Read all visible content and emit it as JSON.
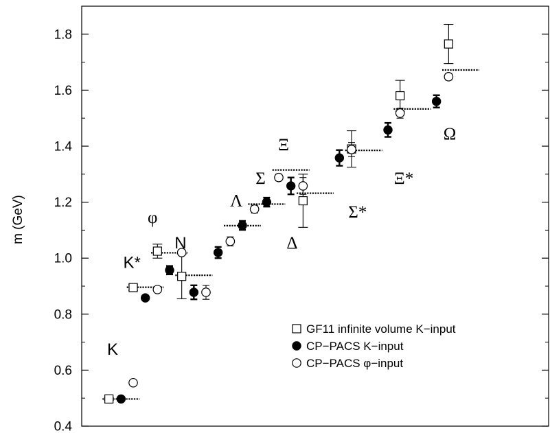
{
  "chart_data": {
    "type": "scatter",
    "ylabel": "m (GeV)",
    "ylim": [
      0.4,
      1.9
    ],
    "yticks": [
      "0.4",
      "0.6",
      "0.8",
      "1.0",
      "1.2",
      "1.4",
      "1.6",
      "1.8"
    ],
    "ytick_values": [
      0.4,
      0.6,
      0.8,
      1.0,
      1.2,
      1.4,
      1.6,
      1.8
    ],
    "xlim": [
      0,
      18
    ],
    "particles": [
      {
        "label": "K",
        "experiment": 0.497,
        "label_y": 0.655,
        "label_offset": 0.35,
        "font": "sans"
      },
      {
        "label": "K*",
        "experiment": 0.896,
        "label_y": 0.965,
        "label_offset": 0.55,
        "font": "sans"
      },
      {
        "label": "φ",
        "experiment": 1.019,
        "label_y": 1.125,
        "label_offset": 0.7,
        "font": "serif"
      },
      {
        "label": "N",
        "experiment": 0.939,
        "label_y": 1.035,
        "label_offset": 0.55,
        "font": "sans"
      },
      {
        "label": "Λ",
        "experiment": 1.116,
        "label_y": 1.185,
        "label_offset": 0.25,
        "font": "serif"
      },
      {
        "label": "Σ",
        "experiment": 1.193,
        "label_y": 1.265,
        "label_offset": 0.25,
        "font": "serif"
      },
      {
        "label": "Ξ",
        "experiment": 1.315,
        "label_y": 1.385,
        "label_offset": 0.3,
        "font": "serif"
      },
      {
        "label": "Δ",
        "experiment": 1.232,
        "label_y": 1.035,
        "label_offset": 0.95,
        "font": "serif"
      },
      {
        "label": "Σ*",
        "experiment": 1.385,
        "label_y": 1.145,
        "label_offset": 0.25,
        "font": "serif"
      },
      {
        "label": "Ξ*",
        "experiment": 1.533,
        "label_y": 1.265,
        "label_offset": 0.35,
        "font": "serif"
      },
      {
        "label": "Ω",
        "experiment": 1.672,
        "label_y": 1.425,
        "label_offset": 0.45,
        "font": "serif"
      }
    ],
    "series": [
      {
        "name": "GF11 infinite volume K−input",
        "marker": "open-square",
        "points": [
          {
            "x": 0.5,
            "y": 0.497,
            "err": 0.005
          },
          {
            "x": 1.5,
            "y": 0.895,
            "err": 0.01
          },
          {
            "x": 2.5,
            "y": 1.025,
            "err": 0.025
          },
          {
            "x": 3.5,
            "y": 0.935,
            "err": 0.08
          },
          {
            "x": 8.5,
            "y": 1.205,
            "err": 0.095
          },
          {
            "x": 10.5,
            "y": 1.39,
            "err": 0.065
          },
          {
            "x": 12.5,
            "y": 1.58,
            "err": 0.055
          },
          {
            "x": 14.5,
            "y": 1.765,
            "err": 0.07
          }
        ]
      },
      {
        "name": "CP−PACS K−input",
        "marker": "filled-circle",
        "points": [
          {
            "x": 1.0,
            "y": 0.497,
            "err": 0.004
          },
          {
            "x": 2.0,
            "y": 0.858,
            "err": 0.008
          },
          {
            "x": 3.0,
            "y": 0.957,
            "err": 0.015
          },
          {
            "x": 4.0,
            "y": 0.878,
            "err": 0.025
          },
          {
            "x": 5.0,
            "y": 1.02,
            "err": 0.02
          },
          {
            "x": 6.0,
            "y": 1.117,
            "err": 0.016
          },
          {
            "x": 7.0,
            "y": 1.2,
            "err": 0.016
          },
          {
            "x": 8.0,
            "y": 1.258,
            "err": 0.03
          },
          {
            "x": 10.0,
            "y": 1.358,
            "err": 0.028
          },
          {
            "x": 12.0,
            "y": 1.458,
            "err": 0.025
          },
          {
            "x": 14.0,
            "y": 1.56,
            "err": 0.022
          }
        ]
      },
      {
        "name": "CP−PACS φ−input",
        "marker": "open-circle",
        "points": [
          {
            "x": 1.5,
            "y": 0.555,
            "err": 0.004
          },
          {
            "x": 2.5,
            "y": 0.888,
            "err": 0.008
          },
          {
            "x": 3.5,
            "y": 1.02,
            "err": 0.01
          },
          {
            "x": 4.5,
            "y": 0.878,
            "err": 0.025
          },
          {
            "x": 5.5,
            "y": 1.06,
            "err": 0.016
          },
          {
            "x": 6.5,
            "y": 1.175,
            "err": 0.014
          },
          {
            "x": 7.5,
            "y": 1.288,
            "err": 0.012
          },
          {
            "x": 8.5,
            "y": 1.258,
            "err": 0.03
          },
          {
            "x": 10.5,
            "y": 1.388,
            "err": 0.025
          },
          {
            "x": 12.5,
            "y": 1.518,
            "err": 0.018
          },
          {
            "x": 14.5,
            "y": 1.648,
            "err": 0.012
          }
        ]
      }
    ],
    "legend": {
      "placement": "bottom-right",
      "entries": [
        {
          "marker": "open-square",
          "label": "GF11 infinite volume K−input"
        },
        {
          "marker": "filled-circle",
          "label": "CP−PACS K−input"
        },
        {
          "marker": "open-circle",
          "label": "CP−PACS φ−input"
        }
      ]
    },
    "grid": false
  }
}
